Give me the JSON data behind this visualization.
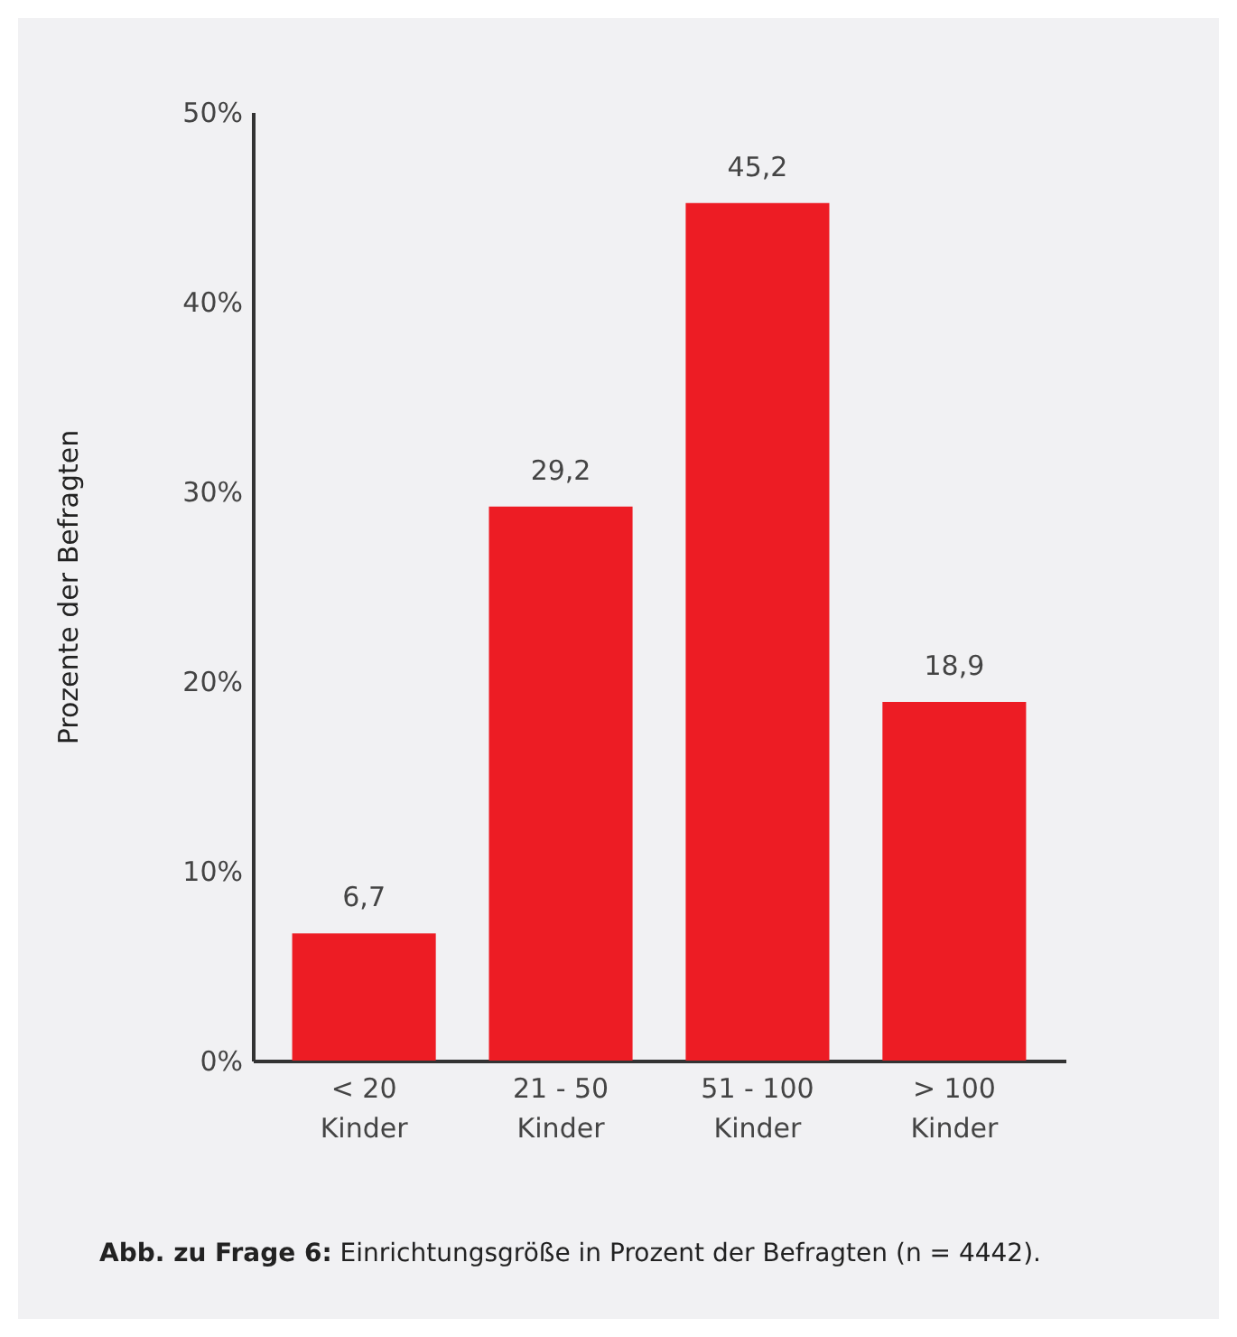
{
  "chart_data": {
    "type": "bar",
    "categories": [
      "< 20 Kinder",
      "21 - 50 Kinder",
      "51 - 100 Kinder",
      "> 100 Kinder"
    ],
    "values": [
      6.7,
      29.2,
      45.2,
      18.9
    ],
    "value_labels": [
      "6,7",
      "29,2",
      "45,2",
      "18,9"
    ],
    "color": "#ed1c24",
    "ylabel": "Prozente der Befragten",
    "ylim": [
      0,
      50
    ],
    "yticks": [
      {
        "value": 0,
        "label": "0%"
      },
      {
        "value": 10,
        "label": "10%"
      },
      {
        "value": 20,
        "label": "20%"
      },
      {
        "value": 30,
        "label": "30%"
      },
      {
        "value": 40,
        "label": "40%"
      },
      {
        "value": 50,
        "label": "50%"
      }
    ],
    "grid": false,
    "annotations": [
      "Abb. zu Frage 6: Einrichtungsgröße in Prozent der Befragten (n = 4442)."
    ]
  }
}
